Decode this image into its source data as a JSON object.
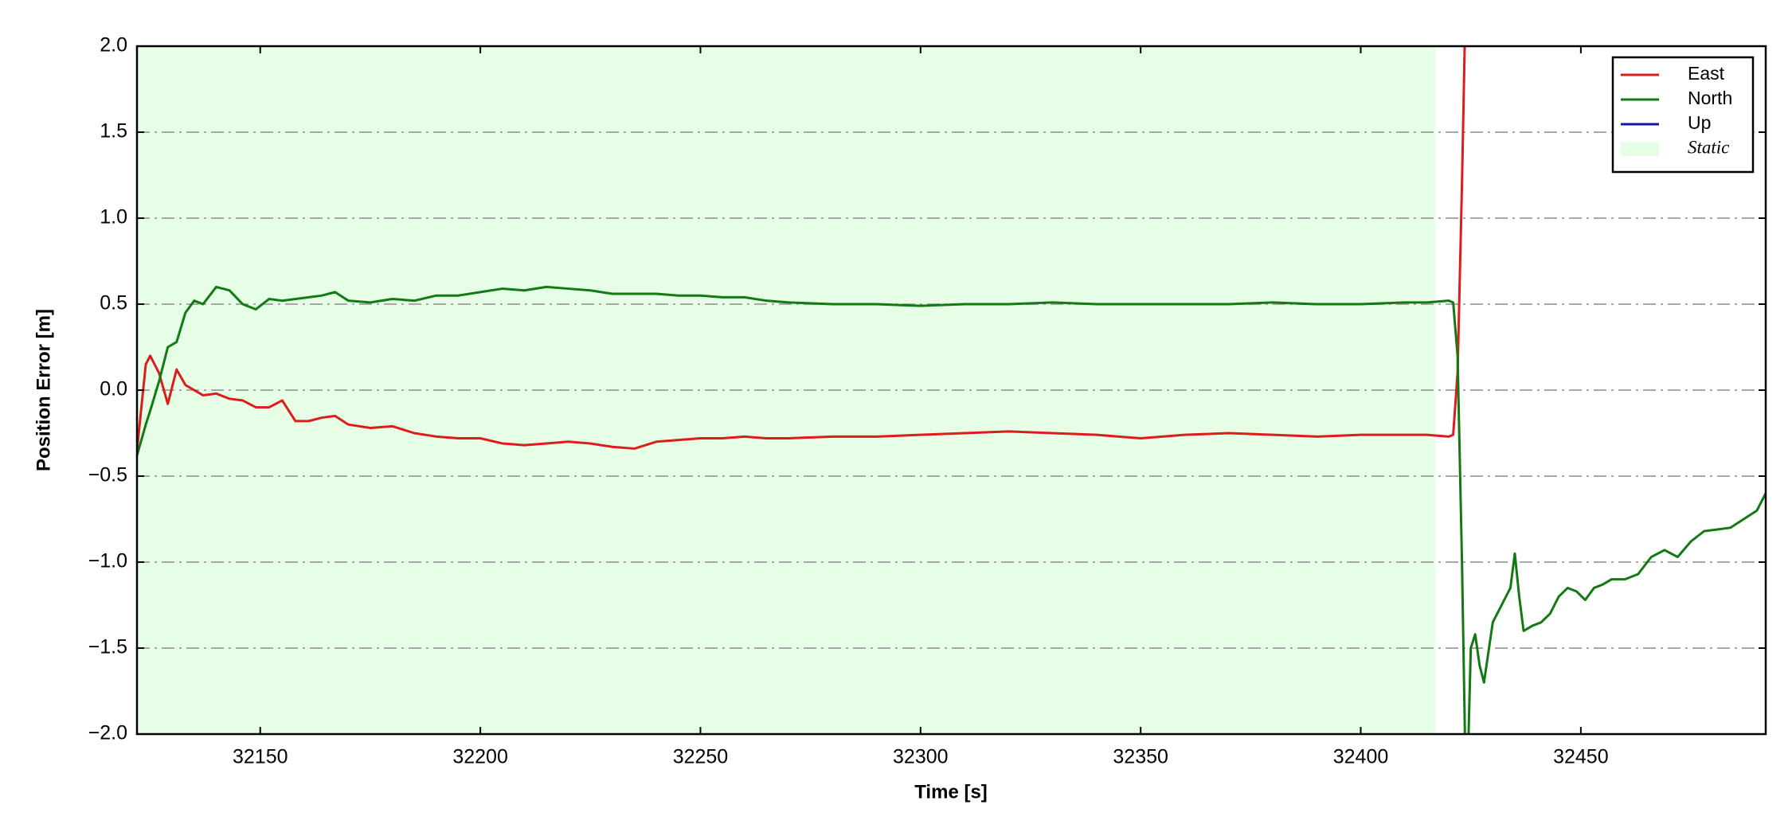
{
  "chart_data": {
    "type": "line",
    "x_label": "Time [s]",
    "y_label": "Position Error [m]",
    "xlim": [
      32122,
      32492
    ],
    "ylim": [
      -2.0,
      2.0
    ],
    "xticks": [
      32150,
      32200,
      32250,
      32300,
      32350,
      32400,
      32450
    ],
    "yticks": [
      {
        "value": -2.0,
        "label": "−2.0"
      },
      {
        "value": -1.5,
        "label": "−1.5"
      },
      {
        "value": -1.0,
        "label": "−1.0"
      },
      {
        "value": -0.5,
        "label": "−0.5"
      },
      {
        "value": 0,
        "label": "0.0"
      },
      0.5,
      {
        "value": 1.0,
        "label": "1.0"
      },
      1.5,
      {
        "value": 2.0,
        "label": "2.0"
      }
    ],
    "grid": true,
    "legend_position": "upper right",
    "static": {
      "name": "Static",
      "span": [
        32122,
        32417
      ],
      "color": "#e6fde6"
    },
    "x": [
      32122,
      32124,
      32125,
      32127,
      32129,
      32131,
      32133,
      32135,
      32137,
      32140,
      32143,
      32146,
      32149,
      32152,
      32155,
      32158,
      32161,
      32164,
      32167,
      32170,
      32175,
      32180,
      32185,
      32190,
      32195,
      32200,
      32205,
      32210,
      32215,
      32220,
      32225,
      32230,
      32235,
      32240,
      32245,
      32250,
      32255,
      32260,
      32265,
      32270,
      32280,
      32290,
      32300,
      32310,
      32320,
      32330,
      32340,
      32350,
      32360,
      32370,
      32380,
      32390,
      32400,
      32410,
      32415,
      32420,
      32421,
      32422,
      32423,
      32424,
      32425,
      32426,
      32427,
      32428,
      32430,
      32432,
      32434,
      32435,
      32436,
      32437,
      32439,
      32441,
      32443,
      32445,
      32447,
      32449,
      32451,
      32453,
      32455,
      32457,
      32460,
      32463,
      32466,
      32469,
      32472,
      32475,
      32478,
      32481,
      32484,
      32487,
      32490,
      32492
    ],
    "series": [
      {
        "name": "East",
        "color": "#dd1c1c",
        "values": [
          -0.35,
          0.15,
          0.2,
          0.1,
          -0.08,
          0.12,
          0.03,
          0.0,
          -0.03,
          -0.02,
          -0.05,
          -0.06,
          -0.1,
          -0.1,
          -0.06,
          -0.18,
          -0.18,
          -0.16,
          -0.15,
          -0.2,
          -0.22,
          -0.21,
          -0.25,
          -0.27,
          -0.28,
          -0.28,
          -0.31,
          -0.32,
          -0.31,
          -0.3,
          -0.31,
          -0.33,
          -0.34,
          -0.3,
          -0.29,
          -0.28,
          -0.28,
          -0.27,
          -0.28,
          -0.28,
          -0.27,
          -0.27,
          -0.26,
          -0.25,
          -0.24,
          -0.25,
          -0.26,
          -0.28,
          -0.26,
          -0.25,
          -0.26,
          -0.27,
          -0.26,
          -0.26,
          -0.26,
          -0.27,
          -0.26,
          0.1,
          1.2,
          2.5,
          null,
          null,
          null,
          null,
          null,
          null,
          null,
          null,
          null,
          null,
          null,
          null,
          null,
          null,
          null,
          null,
          null,
          null,
          null,
          null,
          null,
          null,
          null,
          null,
          null,
          null,
          null,
          null,
          null,
          null,
          null,
          null
        ]
      },
      {
        "name": "North",
        "color": "#137a13",
        "values": [
          -0.38,
          -0.2,
          -0.12,
          0.05,
          0.25,
          0.28,
          0.45,
          0.52,
          0.5,
          0.6,
          0.58,
          0.5,
          0.47,
          0.53,
          0.52,
          0.53,
          0.54,
          0.55,
          0.57,
          0.52,
          0.51,
          0.53,
          0.52,
          0.55,
          0.55,
          0.57,
          0.59,
          0.58,
          0.6,
          0.59,
          0.58,
          0.56,
          0.56,
          0.56,
          0.55,
          0.55,
          0.54,
          0.54,
          0.52,
          0.51,
          0.5,
          0.5,
          0.49,
          0.5,
          0.5,
          0.51,
          0.5,
          0.5,
          0.5,
          0.5,
          0.51,
          0.5,
          0.5,
          0.51,
          0.51,
          0.52,
          0.51,
          0.2,
          -1.0,
          -2.5,
          -1.5,
          -1.42,
          -1.6,
          -1.7,
          -1.35,
          -1.25,
          -1.15,
          -0.95,
          -1.2,
          -1.4,
          -1.37,
          -1.35,
          -1.3,
          -1.2,
          -1.15,
          -1.17,
          -1.22,
          -1.15,
          -1.13,
          -1.1,
          -1.1,
          -1.07,
          -0.97,
          -0.93,
          -0.97,
          -0.88,
          -0.82,
          -0.81,
          -0.8,
          -0.75,
          -0.7,
          -0.6
        ]
      },
      {
        "name": "Up",
        "color": "#1515a5",
        "values": [
          null,
          null,
          null,
          null,
          null,
          null,
          null,
          null,
          null,
          null,
          null,
          null,
          null,
          null,
          null,
          null,
          null,
          null,
          null,
          null,
          null,
          null,
          null,
          null,
          null,
          null,
          null,
          null,
          null,
          null,
          null,
          null,
          null,
          null,
          null,
          null,
          null,
          null,
          null,
          null,
          null,
          null,
          null,
          null,
          null,
          null,
          null,
          null,
          null,
          null,
          null,
          null,
          null,
          null,
          null,
          null,
          null,
          null,
          null,
          null,
          null,
          null,
          null,
          null,
          null,
          null,
          null,
          null,
          null,
          null,
          null,
          null,
          null,
          null,
          null,
          null,
          null,
          null,
          null,
          null,
          null,
          null,
          null,
          null,
          null,
          null,
          null,
          null,
          null,
          null,
          null,
          null
        ]
      }
    ]
  }
}
